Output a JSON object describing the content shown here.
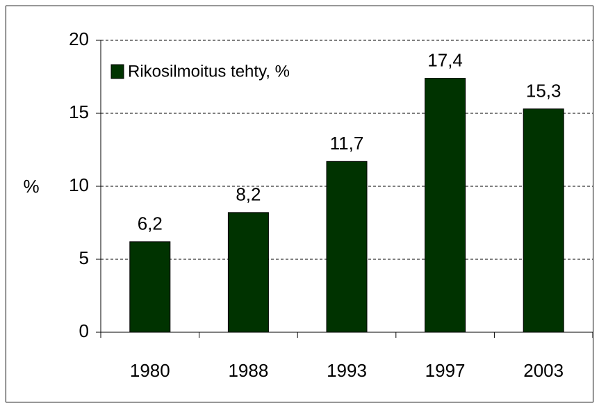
{
  "chart_data": {
    "type": "bar",
    "categories": [
      "1980",
      "1988",
      "1993",
      "1997",
      "2003"
    ],
    "series": [
      {
        "name": "Rikosilmoitus tehty, %",
        "color": "#003300",
        "values": [
          6.2,
          8.2,
          11.7,
          17.4,
          15.3
        ],
        "value_labels": [
          "6,2",
          "8,2",
          "11,7",
          "17,4",
          "15,3"
        ]
      }
    ],
    "y_label": "%",
    "ylim": [
      0,
      20
    ],
    "yticks": [
      0,
      5,
      10,
      15,
      20
    ],
    "grid": true,
    "legend": "upper left"
  }
}
